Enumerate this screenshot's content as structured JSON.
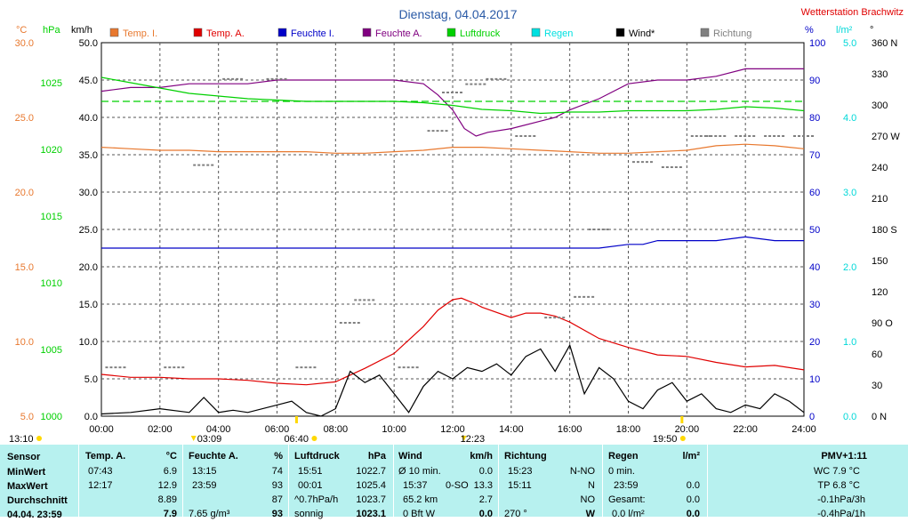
{
  "header": {
    "title": "Dienstag, 04.04.2017",
    "station": "Wetterstation Brachwitz"
  },
  "units": {
    "celsius": "°C",
    "hpa": "hPa",
    "kmh": "km/h",
    "percent": "%",
    "lm2": "l/m²",
    "degree": "°"
  },
  "legend": [
    {
      "label": "Temp. I.",
      "color": "#e8782e"
    },
    {
      "label": "Temp. A.",
      "color": "#e00000"
    },
    {
      "label": "Feuchte I.",
      "color": "#0000c8"
    },
    {
      "label": "Feuchte A.",
      "color": "#800080"
    },
    {
      "label": "Luftdruck",
      "color": "#00d000"
    },
    {
      "label": "Regen",
      "color": "#00e0e0"
    },
    {
      "label": "Wind*",
      "color": "#000000"
    },
    {
      "label": "Richtung",
      "color": "#808080"
    }
  ],
  "colors": {
    "temp_i": "#e8782e",
    "temp_a": "#e00000",
    "feuchte_i": "#0000c8",
    "feuchte_a": "#800080",
    "luftdruck": "#00d000",
    "regen": "#00d8d8",
    "wind": "#000000",
    "richtung": "#808080",
    "title": "#2a5aa6",
    "station": "#e00000",
    "panel_bg": "#b7f1ef",
    "sun": "#ffd800"
  },
  "chart_data": {
    "type": "line",
    "grid": true,
    "x_ticks": [
      "00:00",
      "02:00",
      "04:00",
      "06:00",
      "08:00",
      "10:00",
      "12:00",
      "14:00",
      "16:00",
      "18:00",
      "20:00",
      "22:00",
      "24:00"
    ],
    "axes": {
      "temp": {
        "unit": "°C",
        "ticks": [
          "5.0",
          "10.0",
          "15.0",
          "20.0",
          "25.0",
          "30.0"
        ],
        "range": [
          5,
          30
        ]
      },
      "pressure": {
        "unit": "hPa",
        "ticks": [
          "1000",
          "1005",
          "1010",
          "1015",
          "1020",
          "1025"
        ],
        "range": [
          1000,
          1028
        ]
      },
      "wind": {
        "unit": "km/h",
        "ticks": [
          "0.0",
          "5.0",
          "10.0",
          "15.0",
          "20.0",
          "25.0",
          "30.0",
          "35.0",
          "40.0",
          "45.0",
          "50.0"
        ],
        "range": [
          0,
          50
        ]
      },
      "humidity": {
        "unit": "%",
        "ticks": [
          "0",
          "10",
          "20",
          "30",
          "40",
          "50",
          "60",
          "70",
          "80",
          "90",
          "100"
        ],
        "range": [
          0,
          100
        ]
      },
      "rain": {
        "unit": "l/m²",
        "ticks": [
          "0.0",
          "1.0",
          "2.0",
          "3.0",
          "4.0",
          "5.0"
        ],
        "range": [
          0,
          5
        ]
      },
      "direction": {
        "unit": "°",
        "ticks": [
          "0 N",
          "30",
          "60",
          "90 O",
          "120",
          "150",
          "180 S",
          "210",
          "240",
          "270 W",
          "300",
          "330",
          "360 N"
        ],
        "range": [
          0,
          360
        ]
      }
    },
    "series": [
      {
        "name": "Temp. I.",
        "axis": "temp",
        "x": [
          0,
          1,
          2,
          3,
          4,
          5,
          6,
          7,
          8,
          9,
          10,
          11,
          12,
          13,
          14,
          15,
          16,
          17,
          18,
          19,
          20,
          21,
          22,
          23,
          24
        ],
        "values": [
          23.0,
          22.9,
          22.8,
          22.8,
          22.7,
          22.7,
          22.7,
          22.7,
          22.6,
          22.6,
          22.7,
          22.8,
          23.0,
          23.0,
          22.9,
          22.8,
          22.7,
          22.6,
          22.6,
          22.7,
          22.8,
          23.1,
          23.2,
          23.1,
          22.9
        ]
      },
      {
        "name": "Temp. A.",
        "axis": "temp",
        "x": [
          0,
          1,
          2,
          3,
          4,
          5,
          6,
          7,
          8,
          9,
          10,
          11,
          11.5,
          12,
          12.3,
          12.8,
          13,
          14,
          14.5,
          15,
          15.5,
          16,
          17,
          18,
          19,
          20,
          21,
          22,
          23,
          24
        ],
        "values": [
          7.8,
          7.6,
          7.6,
          7.5,
          7.5,
          7.4,
          7.2,
          7.1,
          7.3,
          8.2,
          9.2,
          11.0,
          12.1,
          12.8,
          12.9,
          12.5,
          12.3,
          11.6,
          11.9,
          11.9,
          11.7,
          11.3,
          10.2,
          9.6,
          9.1,
          9.0,
          8.6,
          8.3,
          8.4,
          8.1
        ]
      },
      {
        "name": "Feuchte I.",
        "axis": "humidity",
        "x": [
          0,
          17,
          18,
          18.5,
          19,
          20,
          21,
          22,
          23,
          24
        ],
        "values": [
          45,
          45,
          46,
          46,
          47,
          47,
          47,
          48,
          47,
          47
        ]
      },
      {
        "name": "Feuchte A.",
        "axis": "humidity",
        "x": [
          0,
          1,
          2,
          3,
          4,
          5,
          6,
          7,
          8,
          9,
          10,
          11,
          11.5,
          12,
          12.4,
          12.8,
          13.2,
          14,
          15,
          15.5,
          16,
          17,
          18,
          19,
          20,
          21,
          22,
          23,
          24
        ],
        "values": [
          87,
          88,
          88,
          89,
          89,
          89,
          90,
          90,
          90,
          90,
          90,
          89,
          86,
          82,
          77,
          75,
          76,
          77,
          79,
          80,
          82,
          85,
          89,
          90,
          90,
          91,
          93,
          93,
          93
        ]
      },
      {
        "name": "Luftdruck",
        "axis": "pressure",
        "x": [
          0,
          1,
          2,
          3,
          4,
          5,
          6,
          7,
          8,
          9,
          10,
          11,
          12,
          13,
          14,
          15,
          16,
          17,
          18,
          19,
          20,
          21,
          22,
          23,
          24
        ],
        "values": [
          1025.4,
          1025.0,
          1024.6,
          1024.2,
          1024.0,
          1023.8,
          1023.7,
          1023.6,
          1023.6,
          1023.6,
          1023.6,
          1023.5,
          1023.3,
          1023.0,
          1022.9,
          1022.7,
          1022.8,
          1022.8,
          1022.9,
          1022.9,
          1022.9,
          1023.0,
          1023.2,
          1023.1,
          1022.9
        ]
      },
      {
        "name": "Wind*",
        "axis": "wind",
        "x": [
          0,
          1,
          2,
          3,
          3.5,
          4,
          4.5,
          5,
          6,
          6.5,
          7,
          7.5,
          8,
          8.5,
          9,
          9.5,
          10,
          10.5,
          11,
          11.5,
          12,
          12.5,
          13,
          13.5,
          14,
          14.5,
          15,
          15.5,
          16,
          16.5,
          17,
          17.5,
          18,
          18.5,
          19,
          19.5,
          20,
          20.5,
          21,
          21.5,
          22,
          22.5,
          23,
          23.5,
          24
        ],
        "values": [
          0.3,
          0.5,
          1.0,
          0.5,
          2.5,
          0.5,
          0.8,
          0.5,
          1.5,
          2.0,
          0.5,
          0.0,
          1.0,
          6.0,
          4.5,
          5.5,
          3.0,
          0.5,
          4.0,
          6.0,
          5.0,
          6.5,
          6.0,
          7.0,
          5.5,
          8.0,
          9.0,
          6.0,
          9.5,
          3.0,
          6.5,
          5.0,
          2.0,
          1.0,
          3.5,
          4.5,
          2.0,
          3.0,
          1.0,
          0.5,
          1.5,
          1.0,
          3.0,
          2.0,
          0.5
        ]
      },
      {
        "name": "Richtung",
        "axis": "direction",
        "x": [
          0.5,
          2.5,
          3.5,
          4.5,
          6,
          7,
          8.5,
          9,
          10.5,
          11.5,
          12,
          12.8,
          13.5,
          14.5,
          15.5,
          16.5,
          17,
          18.5,
          19.5,
          20.5,
          21,
          22,
          23,
          24
        ],
        "values": [
          47,
          47,
          242,
          325,
          325,
          47,
          90,
          112,
          47,
          275,
          312,
          320,
          325,
          270,
          95,
          115,
          180,
          245,
          240,
          270,
          270,
          270,
          270,
          270
        ]
      }
    ]
  },
  "markers": {
    "sunrise": "06:40",
    "sunset": "19:50",
    "moonrise": "12:23",
    "moonset": "03:09",
    "moon_hours": "13:10"
  },
  "table": {
    "sensor_col": {
      "header": "Sensor",
      "rows": [
        "MinWert",
        "MaxWert",
        "Durchschnitt",
        "04.04. 23:59"
      ]
    },
    "temp_a": {
      "header": "Temp. A.",
      "unit": "°C",
      "rows": [
        [
          "07:43",
          "6.9"
        ],
        [
          "12:17",
          "12.9"
        ],
        [
          "",
          "8.89"
        ],
        [
          "",
          "7.9"
        ]
      ]
    },
    "feuchte_a": {
      "header": "Feuchte A.",
      "unit": "%",
      "rows": [
        [
          "13:15",
          "74"
        ],
        [
          "23:59",
          "93"
        ],
        [
          "",
          "87"
        ],
        [
          "7.65 g/m³",
          "93"
        ]
      ]
    },
    "luftdruck": {
      "header": "Luftdruck",
      "unit": "hPa",
      "rows": [
        [
          "15:51",
          "1022.7"
        ],
        [
          "00:01",
          "1025.4"
        ],
        [
          "^0.7hPa/h",
          "1023.7"
        ],
        [
          "sonnig",
          "1023.1"
        ]
      ]
    },
    "wind": {
      "header": "Wind",
      "unit": "km/h",
      "rows": [
        [
          "Ø 10 min.",
          "",
          "0.0"
        ],
        [
          "15:37",
          "0-SO",
          "13.3"
        ],
        [
          "65.2 km",
          "",
          "2.7"
        ],
        [
          "0 Bft W",
          "",
          "0.0"
        ]
      ]
    },
    "richtung": {
      "header": "Richtung",
      "rows": [
        [
          "15:23",
          "N-NO"
        ],
        [
          "15:11",
          "N"
        ],
        [
          "",
          "NO"
        ],
        [
          "270 °",
          "W"
        ]
      ]
    },
    "regen": {
      "header": "Regen",
      "unit": "l/m²",
      "rows": [
        [
          "0 min.",
          "",
          ""
        ],
        [
          "23:59",
          "0.0"
        ],
        [
          "Gesamt:",
          "0.0"
        ],
        [
          "0.0 l/m²",
          "0.0"
        ]
      ]
    },
    "pmv": {
      "header": "PMV+1:11",
      "rows": [
        "WC 7.9 °C",
        "TP 6.8 °C",
        "-0.1hPa/3h",
        "-0.4hPa/1h"
      ]
    }
  }
}
